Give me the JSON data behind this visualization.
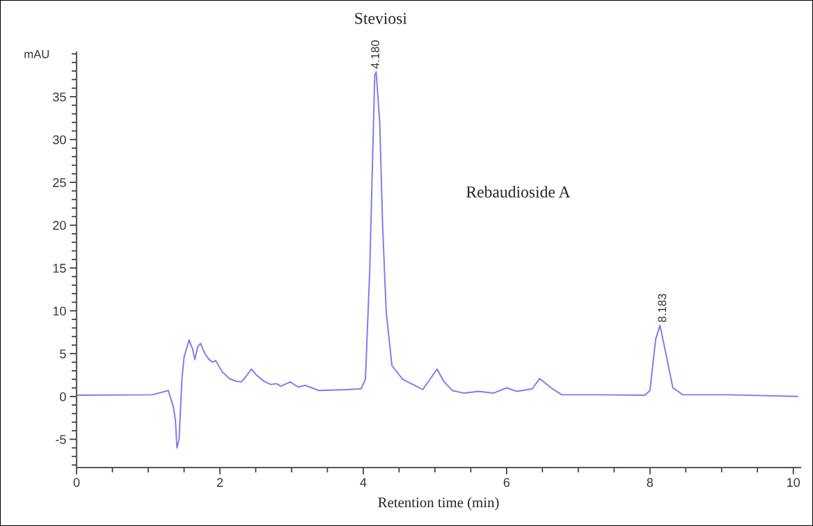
{
  "chart_data": {
    "type": "line",
    "title": "Steviosi",
    "xlabel": "Retention time (min)",
    "ylabel": "mAU",
    "series": [
      {
        "color": "#7b7bf0",
        "x": [
          0,
          1.06,
          1.28,
          1.35,
          1.38,
          1.4,
          1.43,
          1.47,
          1.5,
          1.57,
          1.62,
          1.65,
          1.69,
          1.73,
          1.79,
          1.85,
          1.9,
          1.94,
          2.03,
          2.13,
          2.22,
          2.3,
          2.37,
          2.44,
          2.51,
          2.61,
          2.71,
          2.79,
          2.85,
          2.98,
          3.09,
          3.19,
          3.38,
          3.77,
          3.97,
          4.03,
          4.09,
          4.16,
          4.18,
          4.23,
          4.27,
          4.32,
          4.4,
          4.55,
          4.74,
          4.83,
          4.93,
          5.03,
          5.12,
          5.24,
          5.4,
          5.61,
          5.82,
          6.0,
          6.14,
          6.36,
          6.46,
          6.62,
          6.77,
          7.25,
          7.93,
          8.0,
          8.08,
          8.14,
          8.22,
          8.32,
          8.46,
          9.09,
          10.06
        ],
        "values": [
          0.15,
          0.2,
          0.7,
          -1.2,
          -2.8,
          -6.0,
          -5.0,
          2.0,
          4.6,
          6.6,
          5.5,
          4.3,
          5.8,
          6.2,
          5.0,
          4.3,
          4.0,
          4.2,
          2.9,
          2.1,
          1.8,
          1.7,
          2.4,
          3.2,
          2.5,
          1.8,
          1.4,
          1.5,
          1.2,
          1.7,
          1.1,
          1.3,
          0.7,
          0.8,
          0.9,
          2.0,
          14.6,
          37.5,
          37.9,
          32,
          20,
          9.9,
          3.6,
          2.0,
          1.2,
          0.8,
          2.0,
          3.2,
          1.8,
          0.7,
          0.4,
          0.6,
          0.4,
          1.0,
          0.6,
          0.9,
          2.1,
          1.0,
          0.2,
          0.2,
          0.15,
          0.7,
          6.7,
          8.3,
          5.1,
          1.0,
          0.2,
          0.2,
          0.0
        ]
      }
    ],
    "annotations": [
      {
        "text": "4.180",
        "x": 4.18,
        "y": 37.9
      },
      {
        "text": "8.183",
        "x": 8.183,
        "y": 8.3
      },
      "Rebaudioside A"
    ],
    "xlim": [
      0,
      10.1
    ],
    "ylim": [
      -8.3,
      40.2
    ],
    "xticks": [
      0,
      {
        "value": 0.5,
        "label": null
      },
      {
        "value": 1,
        "label": null
      },
      {
        "value": 1.5,
        "label": null
      },
      2,
      {
        "value": 2.5,
        "label": null
      },
      {
        "value": 3,
        "label": null
      },
      {
        "value": 3.5,
        "label": null
      },
      4,
      {
        "value": 4.5,
        "label": null
      },
      {
        "value": 5,
        "label": null
      },
      {
        "value": 5.5,
        "label": null
      },
      6,
      {
        "value": 6.5,
        "label": null
      },
      {
        "value": 7,
        "label": null
      },
      {
        "value": 7.5,
        "label": null
      },
      8,
      {
        "value": 8.5,
        "label": null
      },
      {
        "value": 9,
        "label": null
      },
      {
        "value": 9.5,
        "label": null
      },
      10
    ],
    "yticks": [
      {
        "value": -8,
        "label": null
      },
      {
        "value": -7,
        "label": null
      },
      {
        "value": -6,
        "label": null
      },
      -5,
      {
        "value": -4,
        "label": null
      },
      {
        "value": -3,
        "label": null
      },
      {
        "value": -2,
        "label": null
      },
      {
        "value": -1,
        "label": null
      },
      0,
      {
        "value": 1,
        "label": null
      },
      {
        "value": 2,
        "label": null
      },
      {
        "value": 3,
        "label": null
      },
      {
        "value": 4,
        "label": null
      },
      5,
      {
        "value": 6,
        "label": null
      },
      {
        "value": 7,
        "label": null
      },
      {
        "value": 8,
        "label": null
      },
      {
        "value": 9,
        "label": null
      },
      10,
      {
        "value": 11,
        "label": null
      },
      {
        "value": 12,
        "label": null
      },
      {
        "value": 13,
        "label": null
      },
      {
        "value": 14,
        "label": null
      },
      15,
      {
        "value": 16,
        "label": null
      },
      {
        "value": 17,
        "label": null
      },
      {
        "value": 18,
        "label": null
      },
      {
        "value": 19,
        "label": null
      },
      20,
      {
        "value": 21,
        "label": null
      },
      {
        "value": 22,
        "label": null
      },
      {
        "value": 23,
        "label": null
      },
      {
        "value": 24,
        "label": null
      },
      25,
      {
        "value": 26,
        "label": null
      },
      {
        "value": 27,
        "label": null
      },
      {
        "value": 28,
        "label": null
      },
      {
        "value": 29,
        "label": null
      },
      30,
      {
        "value": 31,
        "label": null
      },
      {
        "value": 32,
        "label": null
      },
      {
        "value": 33,
        "label": null
      },
      {
        "value": 34,
        "label": null
      },
      35,
      {
        "value": 36,
        "label": null
      },
      {
        "value": 37,
        "label": null
      },
      {
        "value": 38,
        "label": null
      },
      {
        "value": 39,
        "label": null
      },
      {
        "value": 40,
        "label": null
      }
    ],
    "grid": false,
    "legend": false
  }
}
